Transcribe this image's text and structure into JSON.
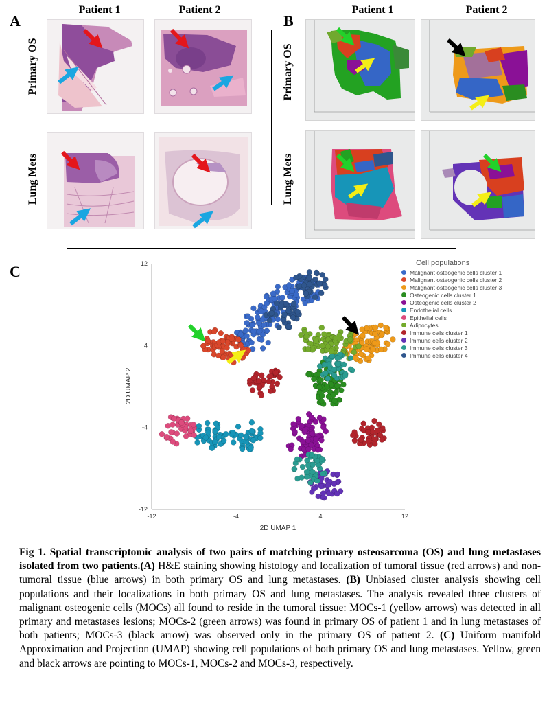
{
  "panels": {
    "a": {
      "letter": "A",
      "col_heads": [
        "Patient 1",
        "Patient 2"
      ],
      "row_heads": [
        "Primary OS",
        "Lung Mets"
      ]
    },
    "b": {
      "letter": "B",
      "col_heads": [
        "Patient 1",
        "Patient 2"
      ],
      "row_heads": [
        "Primary OS",
        "Lung Mets"
      ]
    },
    "c": {
      "letter": "C"
    }
  },
  "colors": {
    "red_arrow": "#e4161c",
    "blue_arrow": "#1aa6e1",
    "green_arrow": "#22d12a",
    "yellow_arrow": "#f4ee16",
    "black_arrow": "#000000"
  },
  "chart_data": {
    "type": "scatter",
    "xlabel": "2D UMAP 1",
    "ylabel": "2D UMAP 2",
    "xlim": [
      -12,
      12
    ],
    "ylim": [
      -12,
      12
    ],
    "x_ticks": [
      "-12",
      "-4",
      "4",
      "12"
    ],
    "y_ticks": [
      "12",
      "4",
      "-4",
      "-12"
    ],
    "legend_title": "Cell populations",
    "legend_position": "top-right",
    "series": [
      {
        "name": "Malignant osteogenic cells cluster 1",
        "color": "#3a6ac8",
        "centers": [
          [
            -2.5,
            4.8
          ],
          [
            -1.5,
            6.5
          ],
          [
            0.5,
            8.5
          ],
          [
            2.5,
            9.5
          ]
        ]
      },
      {
        "name": "Malignant osteogenic cells cluster 2",
        "color": "#d9472b",
        "centers": [
          [
            -5.5,
            4.2
          ],
          [
            -4.5,
            3.5
          ]
        ]
      },
      {
        "name": "Malignant osteogenic cells cluster 3",
        "color": "#ee9a1a",
        "centers": [
          [
            7.8,
            3.8
          ],
          [
            9.2,
            4.8
          ]
        ]
      },
      {
        "name": "Osteogenic cells cluster 1",
        "color": "#2a8d20",
        "centers": [
          [
            5.0,
            -0.5
          ],
          [
            4.5,
            1.0
          ]
        ]
      },
      {
        "name": "Osteogenic cells cluster 2",
        "color": "#8a1196",
        "centers": [
          [
            3.0,
            -4.0
          ],
          [
            2.5,
            -5.5
          ]
        ]
      },
      {
        "name": "Endothelial cells",
        "color": "#1795b8",
        "centers": [
          [
            -6.5,
            -4.8
          ],
          [
            -3.0,
            -4.8
          ]
        ]
      },
      {
        "name": "Epithelial cells",
        "color": "#dd4b7d",
        "centers": [
          [
            -9.5,
            -4.2
          ]
        ]
      },
      {
        "name": "Adipocytes",
        "color": "#74ab2c",
        "centers": [
          [
            3.5,
            4.5
          ],
          [
            6.0,
            4.0
          ]
        ]
      },
      {
        "name": "Immune cells cluster 1",
        "color": "#b2252c",
        "centers": [
          [
            -1.2,
            0.5
          ],
          [
            8.5,
            -4.5
          ]
        ]
      },
      {
        "name": "Immune cells cluster 2",
        "color": "#6333b6",
        "centers": [
          [
            4.5,
            -9.5
          ]
        ]
      },
      {
        "name": "Immune cells cluster 3",
        "color": "#2b9c91",
        "centers": [
          [
            3.0,
            -8.0
          ],
          [
            5.5,
            2.0
          ]
        ]
      },
      {
        "name": "Immune cells cluster 4",
        "color": "#2f568d",
        "centers": [
          [
            0.5,
            7.0
          ],
          [
            3.0,
            10.0
          ]
        ]
      }
    ]
  },
  "caption": {
    "title": "Fig 1. Spatial transcriptomic analysis of two pairs of matching primary osteosarcoma (OS) and lung metastases isolated from two patients.",
    "a_label": "(A)",
    "a_text": " H&E staining showing histology and localization of tumoral tissue (red arrows) and non-tumoral tissue (blue arrows) in both primary OS and lung metastases. ",
    "b_label": "(B)",
    "b_text": " Unbiased cluster analysis showing cell populations and their localizations in both primary OS and lung metastases. The analysis revealed three clusters of malignant osteogenic cells (MOCs) all found to reside in the tumoral tissue: MOCs-1 (yellow arrows) was detected in all primary and metastases lesions; MOCs-2 (green arrows) was found in primary OS of patient 1 and in lung metastases of both patients; MOCs-3 (black arrow) was observed only in the primary OS of patient 2. ",
    "c_label": "(C)",
    "c_text": " Uniform manifold Approximation and Projection (UMAP) showing cell populations of both primary OS and lung metastases. Yellow, green and black arrows are pointing to MOCs-1, MOCs-2 and MOCs-3, respectively."
  }
}
